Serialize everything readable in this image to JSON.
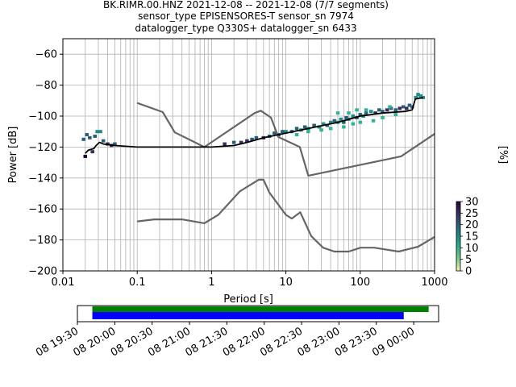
{
  "title_lines": [
    "BK.RIMR.00.HNZ   2021-12-08 -- 2021-12-08  (7/7 segments)",
    "sensor_type EPISENSORES-T sensor_sn 7974",
    "datalogger_type Q330S+ datalogger_sn 6433"
  ],
  "chart_data": [
    {
      "type": "heatmap",
      "title": "BK.RIMR.00.HNZ   2021-12-08 -- 2021-12-08  (7/7 segments)",
      "xlabel": "Period [s]",
      "ylabel": "Power [dB]",
      "xscale": "log",
      "xlim": [
        0.01,
        1000
      ],
      "ylim": [
        -200,
        -50
      ],
      "x_ticks": [
        0.01,
        0.1,
        1,
        10,
        100,
        1000
      ],
      "x_tick_labels": [
        "0.01",
        "0.1",
        "1",
        "10",
        "100",
        "1000"
      ],
      "y_ticks": [
        -200,
        -180,
        -160,
        -140,
        -120,
        -100,
        -80,
        -60
      ],
      "y_tick_labels": [
        "−200",
        "−180",
        "−160",
        "−140",
        "−120",
        "−100",
        "−80",
        "−60"
      ],
      "grid": true,
      "colorbar": {
        "label": "[%]",
        "range": [
          0,
          30
        ],
        "ticks": [
          0,
          5,
          10,
          15,
          20,
          25,
          30
        ],
        "tick_labels": [
          "0",
          "5",
          "10",
          "15",
          "20",
          "25",
          "30"
        ],
        "colors": [
          "#f5f5b0",
          "#7fce8c",
          "#2fb392",
          "#1f8c85",
          "#2b5f78",
          "#3a2d5c",
          "#200a35"
        ]
      },
      "mean_curve": [
        [
          0.02,
          -124
        ],
        [
          0.022,
          -122
        ],
        [
          0.026,
          -121
        ],
        [
          0.028,
          -119
        ],
        [
          0.031,
          -117
        ],
        [
          0.035,
          -118
        ],
        [
          0.05,
          -119
        ],
        [
          0.1,
          -120
        ],
        [
          0.5,
          -120
        ],
        [
          1,
          -120
        ],
        [
          2,
          -119
        ],
        [
          3,
          -117
        ],
        [
          5,
          -114
        ],
        [
          10,
          -111
        ],
        [
          20,
          -108
        ],
        [
          50,
          -104
        ],
        [
          100,
          -100
        ],
        [
          200,
          -98
        ],
        [
          400,
          -97
        ],
        [
          500,
          -96
        ],
        [
          550,
          -89
        ],
        [
          700,
          -88
        ]
      ],
      "noise_model_high": [
        [
          0.1,
          -91.5
        ],
        [
          0.22,
          -97.4
        ],
        [
          0.32,
          -110.5
        ],
        [
          0.8,
          -120.0
        ],
        [
          3.8,
          -98.0
        ],
        [
          4.6,
          -96.5
        ],
        [
          6.3,
          -101.0
        ],
        [
          7.9,
          -113.5
        ],
        [
          15.4,
          -120.0
        ],
        [
          20,
          -138.5
        ],
        [
          354.8,
          -126.0
        ],
        [
          1000,
          -111.5
        ]
      ],
      "noise_model_low": [
        [
          0.1,
          -168.0
        ],
        [
          0.17,
          -166.7
        ],
        [
          0.4,
          -166.7
        ],
        [
          0.8,
          -169.2
        ],
        [
          1.24,
          -163.7
        ],
        [
          2.4,
          -148.6
        ],
        [
          4.3,
          -141.1
        ],
        [
          5.0,
          -141.1
        ],
        [
          6.0,
          -149.4
        ],
        [
          10.0,
          -163.8
        ],
        [
          12.0,
          -166.2
        ],
        [
          15.6,
          -162.1
        ],
        [
          21.9,
          -177.5
        ],
        [
          31.6,
          -185.0
        ],
        [
          45,
          -187.5
        ],
        [
          70,
          -187.5
        ],
        [
          101,
          -185.0
        ],
        [
          154,
          -185.0
        ],
        [
          328,
          -187.5
        ],
        [
          600,
          -184.4
        ],
        [
          1000,
          -178.0
        ]
      ],
      "psd_points": [
        [
          0.019,
          -115,
          22
        ],
        [
          0.02,
          -126,
          28
        ],
        [
          0.021,
          -112,
          18
        ],
        [
          0.023,
          -114,
          20
        ],
        [
          0.025,
          -123,
          26
        ],
        [
          0.027,
          -113,
          18
        ],
        [
          0.029,
          -110,
          15
        ],
        [
          0.032,
          -110,
          17
        ],
        [
          0.035,
          -116,
          20
        ],
        [
          0.04,
          -118,
          24
        ],
        [
          0.045,
          -119,
          26
        ],
        [
          0.05,
          -118,
          22
        ],
        [
          1.5,
          -118,
          24
        ],
        [
          2,
          -117,
          22
        ],
        [
          2.5,
          -117,
          26
        ],
        [
          3,
          -116,
          24
        ],
        [
          3.5,
          -115,
          20
        ],
        [
          4,
          -114,
          22
        ],
        [
          5,
          -114,
          24
        ],
        [
          6,
          -113,
          20
        ],
        [
          7,
          -111,
          18
        ],
        [
          8,
          -112,
          22
        ],
        [
          9,
          -110,
          20
        ],
        [
          10,
          -110,
          16
        ],
        [
          12,
          -110,
          18
        ],
        [
          14,
          -108,
          20
        ],
        [
          16,
          -109,
          16
        ],
        [
          18,
          -107,
          18
        ],
        [
          20,
          -108,
          14
        ],
        [
          24,
          -106,
          18
        ],
        [
          28,
          -107,
          16
        ],
        [
          32,
          -105,
          14
        ],
        [
          36,
          -106,
          18
        ],
        [
          40,
          -104,
          16
        ],
        [
          45,
          -103,
          20
        ],
        [
          50,
          -104,
          14
        ],
        [
          55,
          -102,
          16
        ],
        [
          60,
          -104,
          20
        ],
        [
          65,
          -101,
          18
        ],
        [
          70,
          -102,
          14
        ],
        [
          80,
          -100,
          16
        ],
        [
          90,
          -101,
          18
        ],
        [
          100,
          -99,
          22
        ],
        [
          110,
          -100,
          14
        ],
        [
          120,
          -98,
          20
        ],
        [
          140,
          -97,
          16
        ],
        [
          160,
          -98,
          24
        ],
        [
          180,
          -96,
          20
        ],
        [
          200,
          -97,
          18
        ],
        [
          230,
          -96,
          26
        ],
        [
          260,
          -95,
          22
        ],
        [
          300,
          -96,
          18
        ],
        [
          340,
          -95,
          24
        ],
        [
          380,
          -94,
          20
        ],
        [
          420,
          -95,
          26
        ],
        [
          460,
          -93,
          22
        ],
        [
          500,
          -94,
          18
        ],
        [
          560,
          -88,
          16
        ],
        [
          600,
          -86,
          14
        ],
        [
          650,
          -87,
          16
        ],
        [
          700,
          -88,
          14
        ],
        [
          40,
          -108,
          12
        ],
        [
          60,
          -107,
          12
        ],
        [
          80,
          -105,
          10
        ],
        [
          100,
          -104,
          12
        ],
        [
          150,
          -103,
          10
        ],
        [
          200,
          -101,
          12
        ],
        [
          300,
          -99,
          10
        ],
        [
          20,
          -110,
          12
        ],
        [
          30,
          -109,
          10
        ],
        [
          14,
          -112,
          12
        ],
        [
          50,
          -98,
          10
        ],
        [
          70,
          -98,
          12
        ],
        [
          90,
          -96,
          10
        ],
        [
          120,
          -96,
          10
        ],
        [
          250,
          -94,
          12
        ]
      ]
    },
    {
      "type": "timeline",
      "x_tick_labels": [
        "08 19:30",
        "08 20:00",
        "08 20:30",
        "08 21:00",
        "08 21:30",
        "08 22:00",
        "08 22:30",
        "08 23:00",
        "08 23:30",
        "09 00:00"
      ],
      "xlim": [
        "2021-12-08 19:30",
        "2021-12-09 00:20"
      ],
      "bars": [
        {
          "start": "2021-12-08 19:42",
          "end": "2021-12-09 00:12",
          "color": "#008000"
        },
        {
          "start": "2021-12-08 19:42",
          "end": "2021-12-08 23:52",
          "color": "#0000ff"
        }
      ]
    }
  ]
}
